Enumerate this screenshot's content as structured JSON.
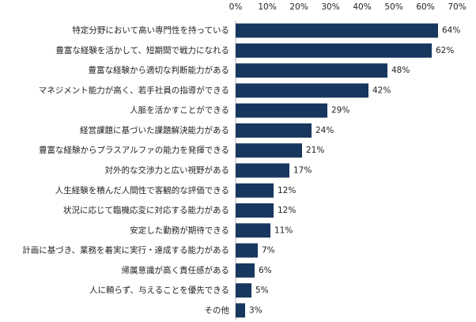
{
  "chart_data": {
    "type": "bar",
    "orientation": "horizontal",
    "categories": [
      "特定分野において高い専門性を持っている",
      "豊富な経験を活かして、短期間で戦力になれる",
      "豊富な経験から適切な判断能力がある",
      "マネジメント能力が高く、若手社員の指導ができる",
      "人脈を活かすことができる",
      "経営課題に基づいた課題解決能力がある",
      "豊富な経験からプラスアルファの能力を発揮できる",
      "対外的な交渉力と広い視野がある",
      "人生経験を積んだ人間性で客観的な評価できる",
      "状況に応じて臨機応変に対応する能力がある",
      "安定した勤務が期待できる",
      "計画に基づき、業務を着実に実行・達成する能力がある",
      "帰属意識が高く責任感がある",
      "人に頼らず、与えることを優先できる",
      "その他"
    ],
    "values": [
      64,
      62,
      48,
      42,
      29,
      24,
      21,
      17,
      12,
      12,
      11,
      7,
      6,
      5,
      3
    ],
    "value_labels": [
      "64%",
      "62%",
      "48%",
      "42%",
      "29%",
      "24%",
      "21%",
      "17%",
      "12%",
      "12%",
      "11%",
      "7%",
      "6%",
      "5%",
      "3%"
    ],
    "color": "#17375e",
    "xlim": [
      0,
      70
    ],
    "xticks": [
      {
        "value": 0,
        "label": "0%"
      },
      {
        "value": 10,
        "label": "10%"
      },
      {
        "value": 20,
        "label": "20%"
      },
      {
        "value": 30,
        "label": "30%"
      },
      {
        "value": 40,
        "label": "40%"
      },
      {
        "value": 50,
        "label": "50%"
      },
      {
        "value": 60,
        "label": "60%"
      },
      {
        "value": 70,
        "label": "70%"
      }
    ]
  }
}
